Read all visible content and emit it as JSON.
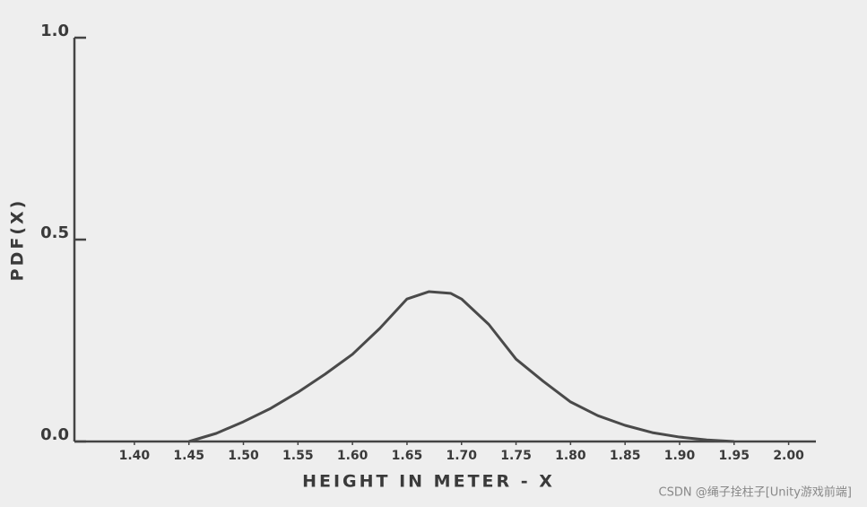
{
  "chart_data": {
    "type": "line",
    "xlabel": "HEIGHT IN METER - X",
    "ylabel": "PDF(X)",
    "x": [
      1.45,
      1.475,
      1.5,
      1.525,
      1.55,
      1.575,
      1.6,
      1.625,
      1.65,
      1.67,
      1.69,
      1.7,
      1.725,
      1.75,
      1.775,
      1.8,
      1.825,
      1.85,
      1.875,
      1.9,
      1.925,
      1.95
    ],
    "series": [
      {
        "color": "#4a4a4a",
        "values": [
          0,
          0.02,
          0.049,
          0.082,
          0.122,
          0.167,
          0.216,
          0.28,
          0.353,
          0.371,
          0.367,
          0.353,
          0.29,
          0.204,
          0.149,
          0.098,
          0.064,
          0.04,
          0.022,
          0.011,
          0.004,
          0
        ]
      }
    ],
    "xlim": [
      1.345,
      2.025
    ],
    "ylim": [
      0,
      1
    ],
    "xticks": [
      {
        "value": 1.4,
        "label": "1.40"
      },
      1.45,
      {
        "value": 1.5,
        "label": "1.50"
      },
      1.55,
      {
        "value": 1.6,
        "label": "1.60"
      },
      1.65,
      {
        "value": 1.7,
        "label": "1.70"
      },
      1.75,
      {
        "value": 1.8,
        "label": "1.80"
      },
      1.85,
      {
        "value": 1.9,
        "label": "1.90"
      },
      1.95,
      {
        "value": 2,
        "label": "2.00"
      }
    ],
    "yticks": [
      {
        "value": 0,
        "label": "0.0"
      },
      {
        "value": 0.5,
        "label": "0.5"
      },
      {
        "value": 1,
        "label": "1.0"
      }
    ],
    "grid": false
  },
  "watermark": "CSDN @绳子拴柱子[Unity游戏前端]"
}
